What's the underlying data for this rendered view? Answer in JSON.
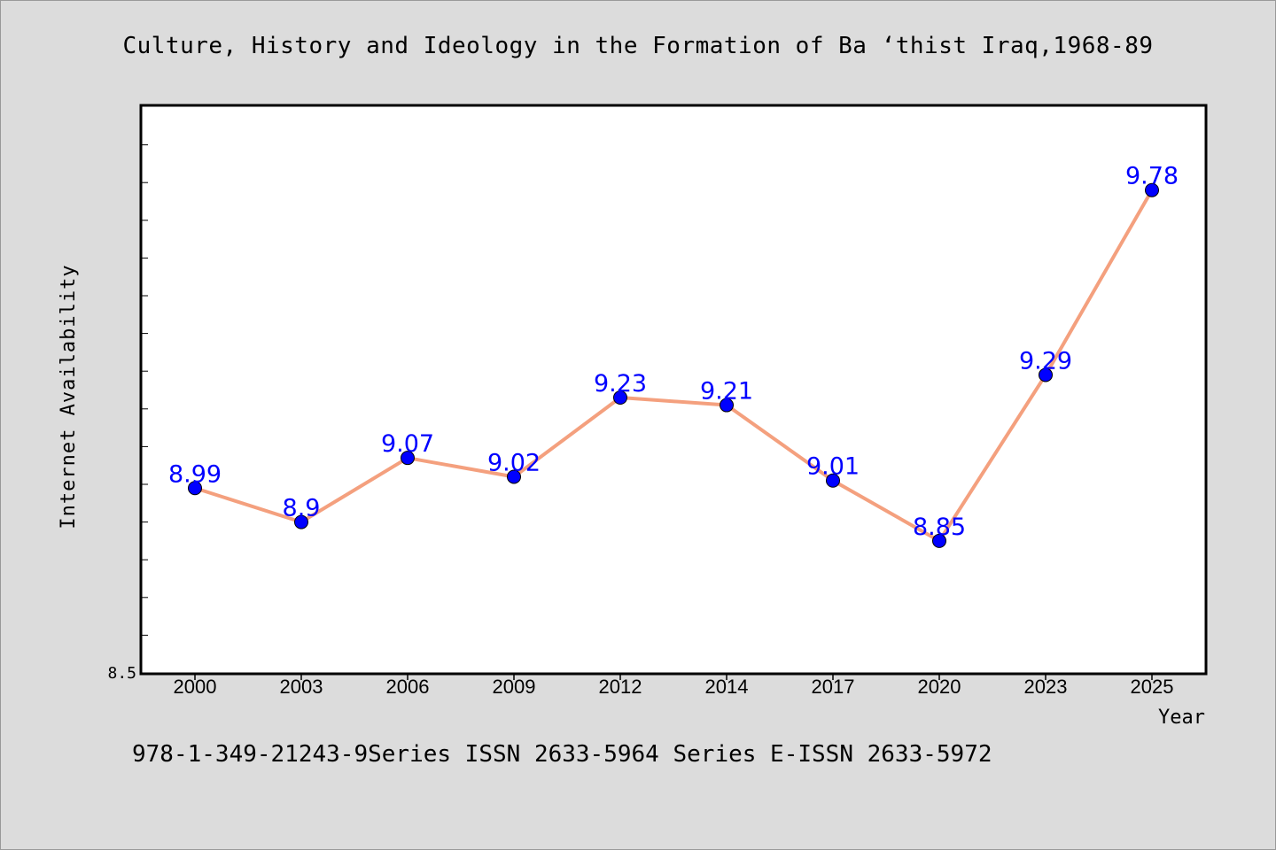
{
  "header": {
    "title": "Culture, History and Ideology in the Formation of Ba ‘thist Iraq,1968-89"
  },
  "footer": {
    "note": "978-1-349-21243-9Series ISSN 2633-5964 Series E-ISSN 2633-5972"
  },
  "colors": {
    "line": "#f4a07e",
    "marker": "#0000ff",
    "data_label": "#0000ff",
    "plot_bg": "#ffffff",
    "page_bg": "#dcdcdc"
  },
  "chart_data": {
    "type": "line",
    "title": "Culture, History and Ideology in the Formation of Ba ‘thist Iraq,1968-89",
    "xlabel": "Year",
    "ylabel": "Internet Availability",
    "categories": [
      "2000",
      "2003",
      "2006",
      "2009",
      "2012",
      "2014",
      "2017",
      "2020",
      "2023",
      "2025"
    ],
    "series": [
      {
        "values": [
          8.99,
          8.9,
          9.07,
          9.02,
          9.23,
          9.21,
          9.01,
          8.85,
          9.29,
          9.78
        ]
      }
    ],
    "data_labels": [
      "8.99",
      "8.9",
      "9.07",
      "9.02",
      "9.23",
      "9.21",
      "9.01",
      "8.85",
      "9.29",
      "9.78"
    ],
    "ylim": [
      8.5,
      10.0
    ],
    "y_tick_labels": [
      "8.5"
    ],
    "grid": false,
    "legend": "none"
  }
}
